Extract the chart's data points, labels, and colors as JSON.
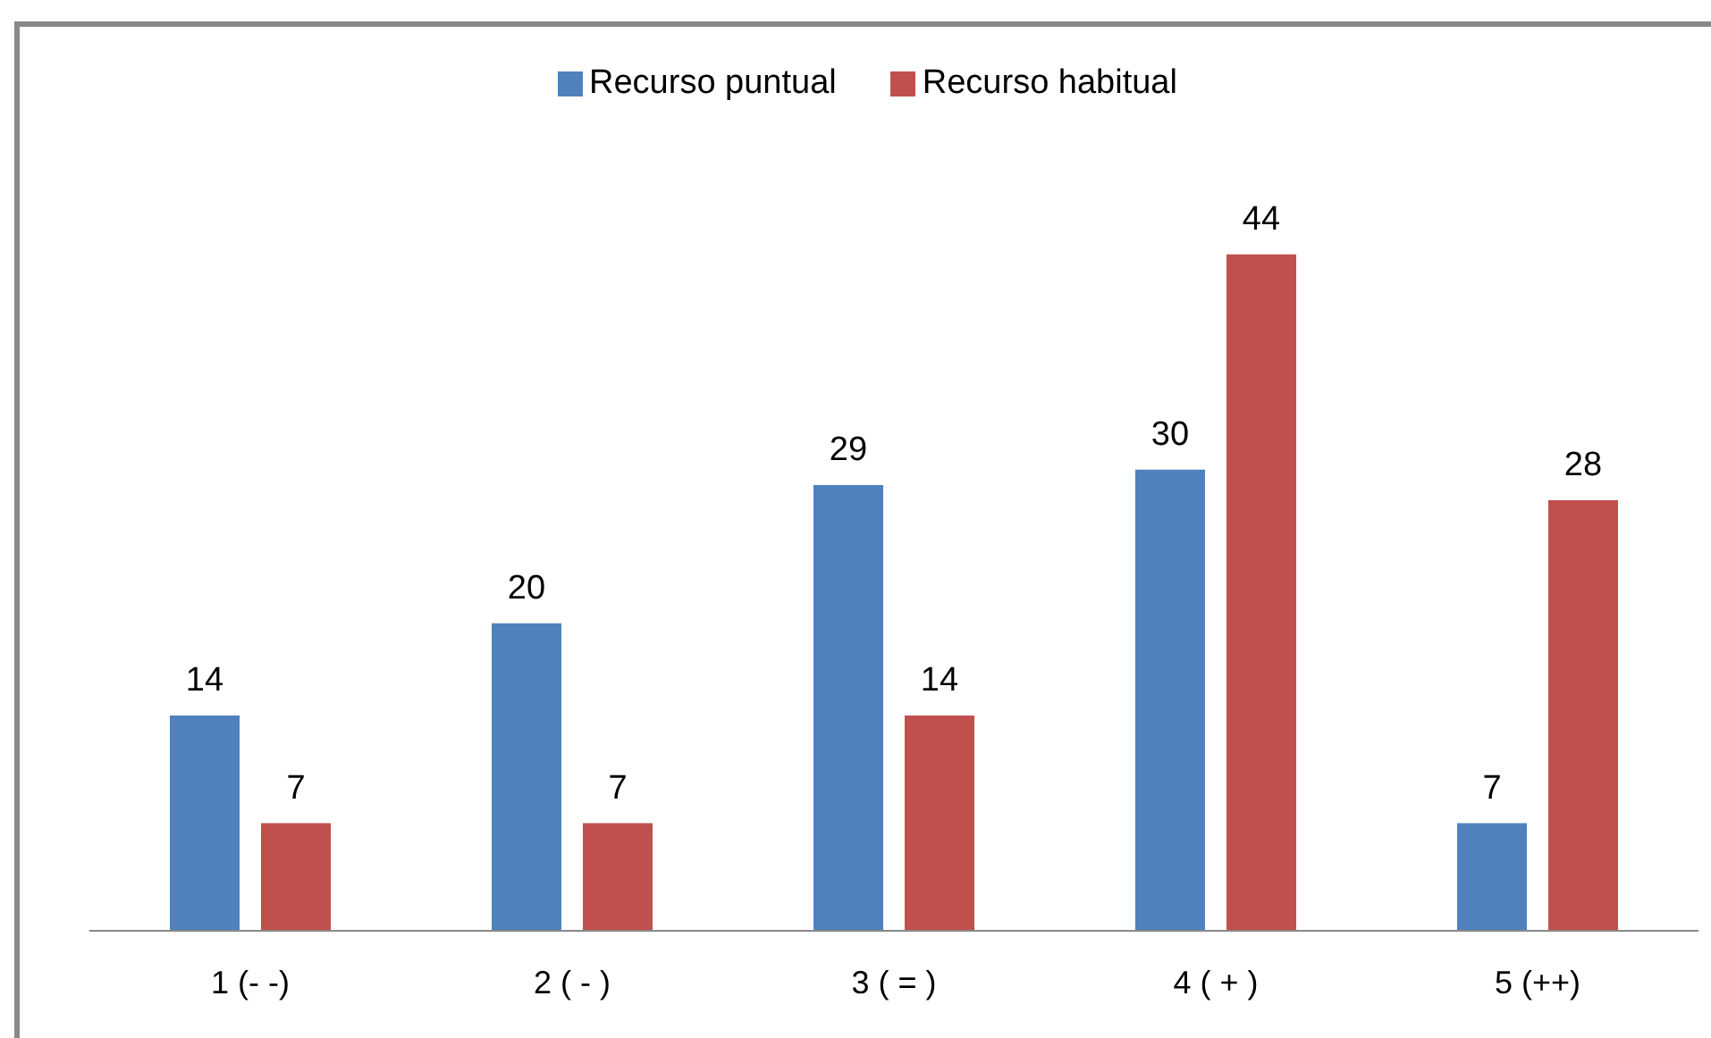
{
  "chart_data": {
    "type": "bar",
    "categories": [
      "1 (- -)",
      "2 ( - )",
      "3 ( = )",
      "4 ( + )",
      "5 (++)"
    ],
    "series": [
      {
        "name": "Recurso puntual",
        "color": "#4f81bd",
        "values": [
          14,
          20,
          29,
          30,
          7
        ]
      },
      {
        "name": "Recurso habitual",
        "color": "#c0504d",
        "values": [
          7,
          7,
          14,
          44,
          28
        ]
      }
    ],
    "data_labels": true,
    "legend": "top",
    "grid": false
  }
}
